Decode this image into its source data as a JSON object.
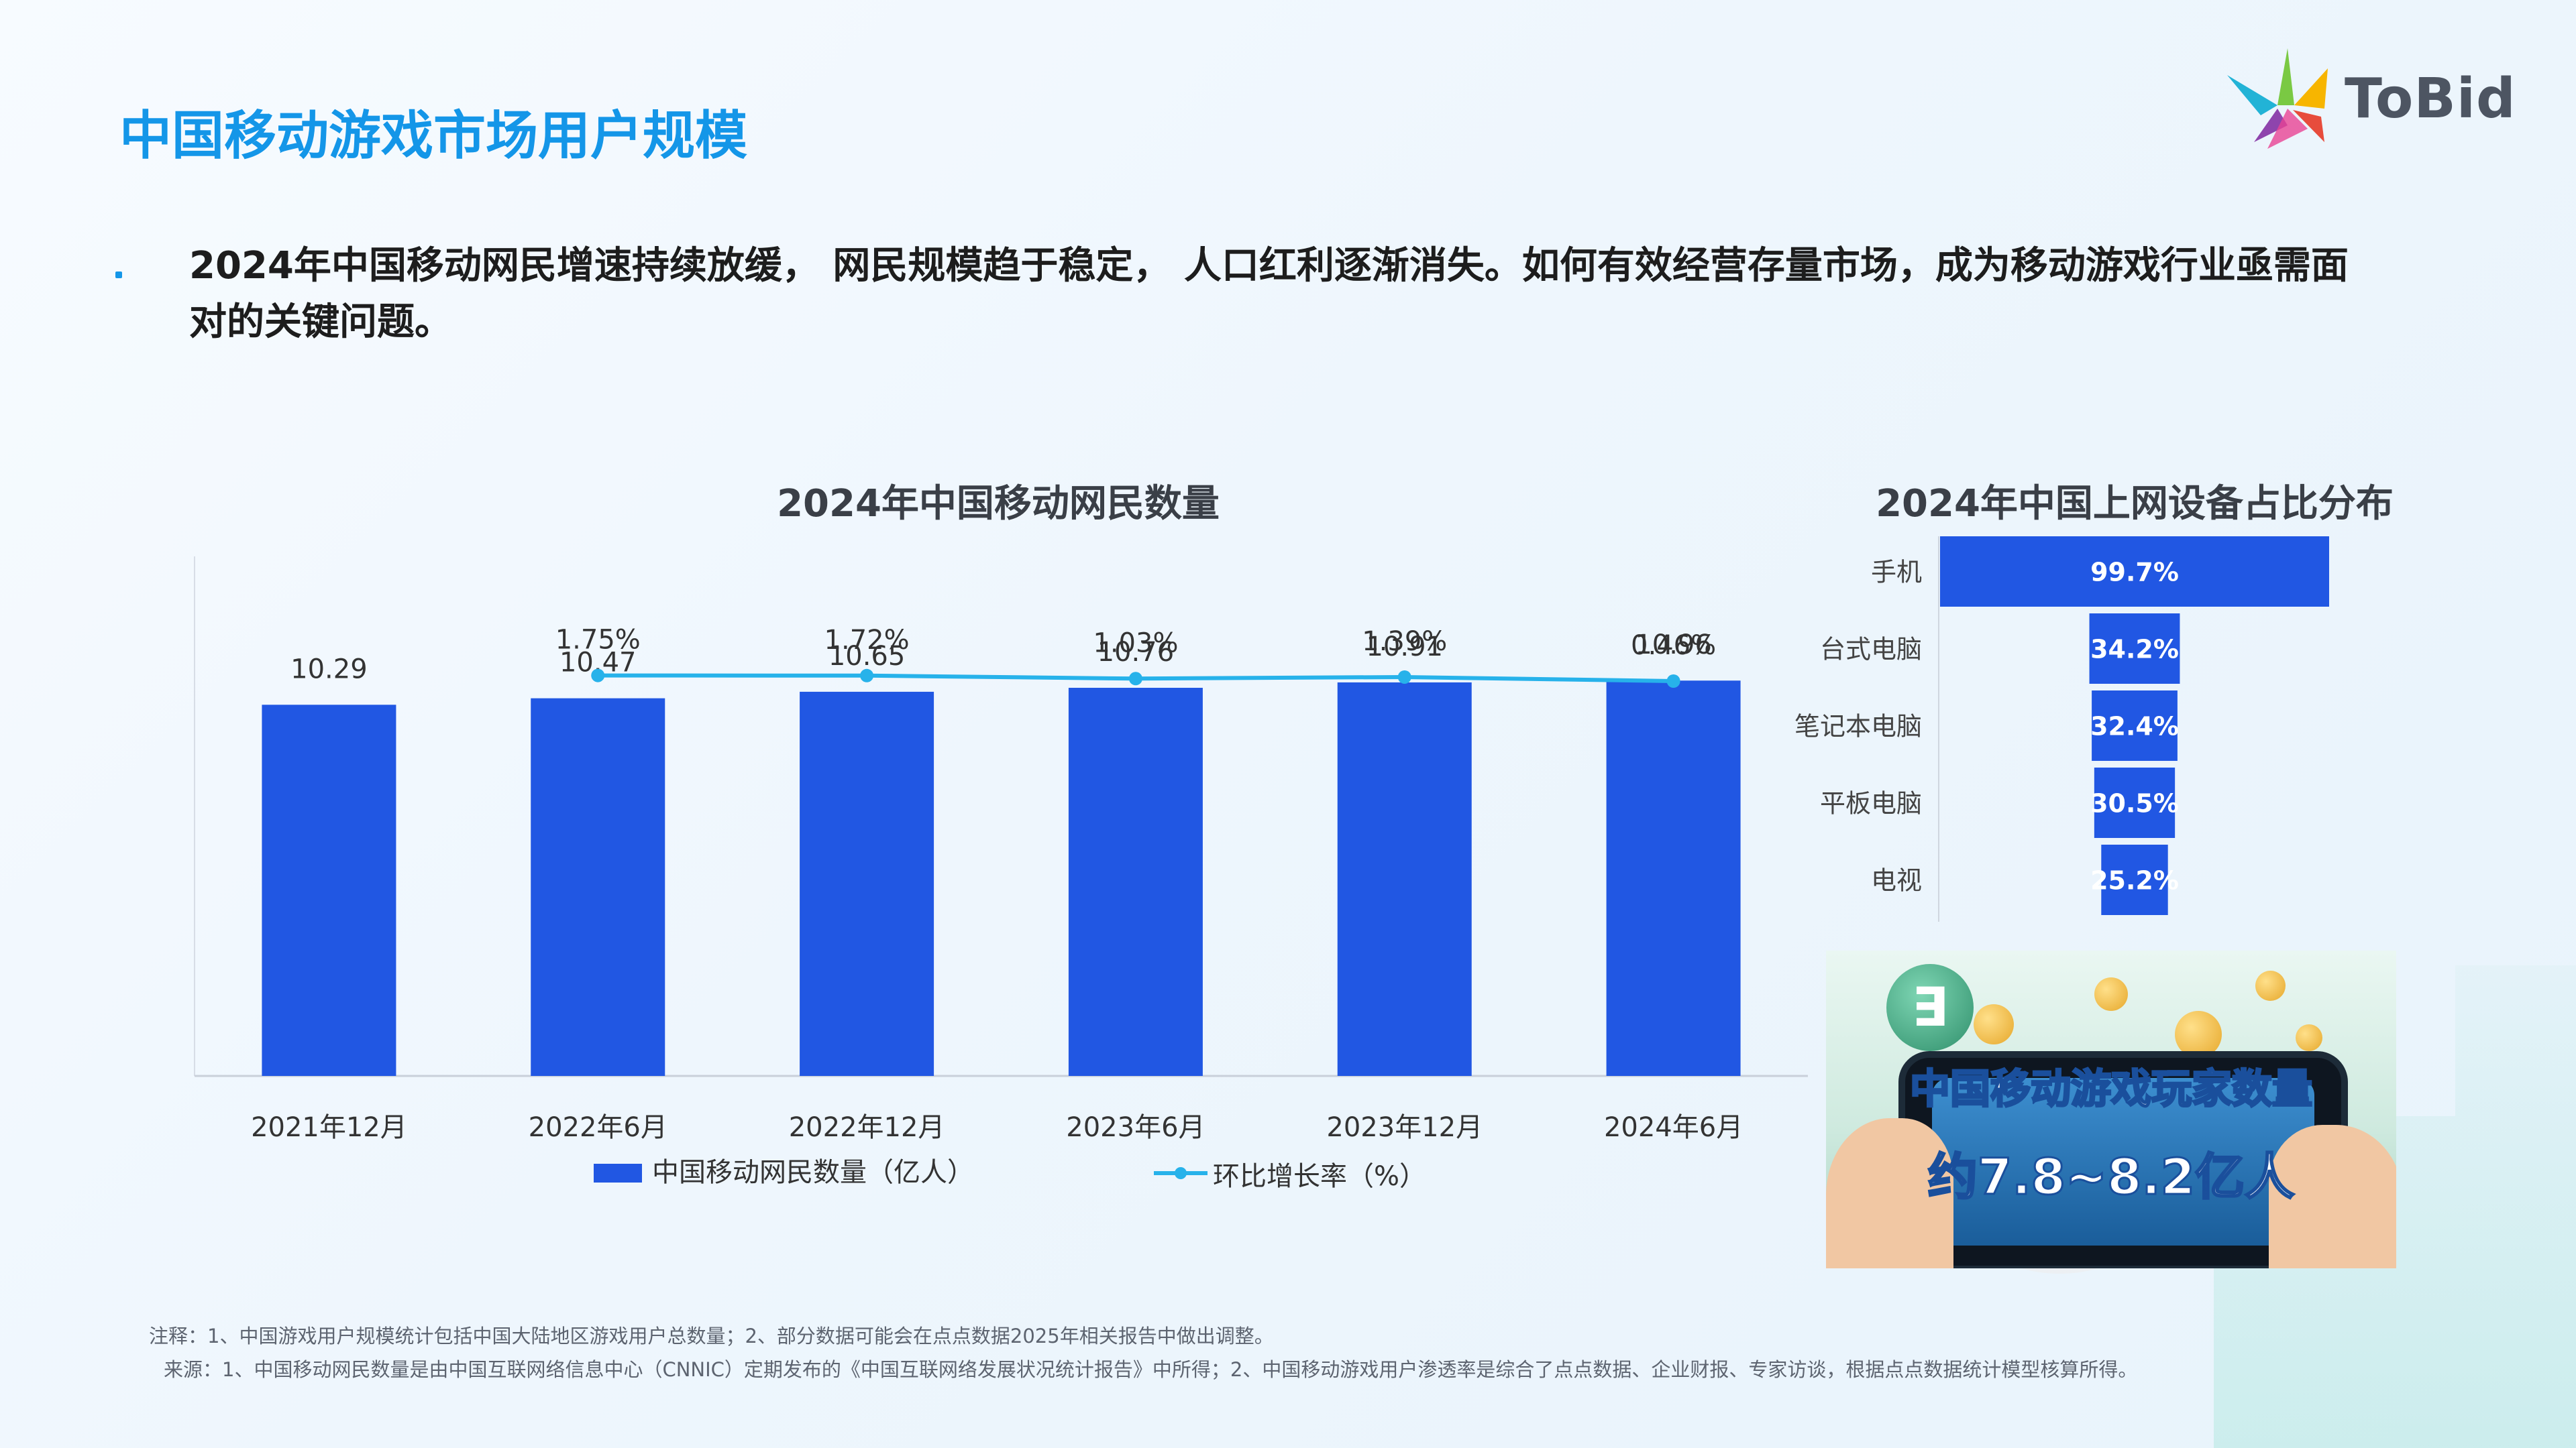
{
  "header": {
    "title": "中国移动游戏市场用户规模",
    "logo_text": "ToBid"
  },
  "intro": {
    "text": "2024年中国移动网民增速持续放缓， 网民规模趋于稳定， 人口红利逐渐消失。如何有效经营存量市场，成为移动游戏行业亟需面对的关键问题。"
  },
  "chart_data": [
    {
      "type": "bar",
      "title": "2024年中国移动网民数量",
      "categories": [
        "2021年12月",
        "2022年6月",
        "2022年12月",
        "2023年6月",
        "2023年12月",
        "2024年6月"
      ],
      "series": [
        {
          "name": "中国移动网民数量（亿人）",
          "type": "bar",
          "values": [
            10.29,
            10.47,
            10.65,
            10.76,
            10.91,
            10.96
          ],
          "color": "#2157e3"
        },
        {
          "name": "环比增长率（%）",
          "type": "line",
          "values": [
            null,
            1.75,
            1.72,
            1.03,
            1.39,
            0.46
          ],
          "labels": [
            "",
            "1.75%",
            "1.72%",
            "1.03%",
            "1.39%",
            "0.46%"
          ],
          "color": "#27b2ea"
        }
      ],
      "value_labels": [
        "10.29",
        "10.47",
        "10.65",
        "10.76",
        "10.91",
        "10.96"
      ],
      "ylim": [
        0,
        12
      ],
      "grid": false,
      "legend": "bottom"
    },
    {
      "type": "bar",
      "orientation": "horizontal-funnel",
      "title": "2024年中国上网设备占比分布",
      "categories": [
        "手机",
        "台式电脑",
        "笔记本电脑",
        "平板电脑",
        "电视"
      ],
      "values": [
        99.7,
        34.2,
        32.4,
        30.5,
        25.2
      ],
      "value_labels": [
        "99.7%",
        "34.2%",
        "32.4%",
        "30.5%",
        "25.2%"
      ],
      "color": "#2157e3"
    }
  ],
  "photo": {
    "caption_line1": "中国移动游戏玩家数量",
    "caption_line2": "约7.8~8.2亿人"
  },
  "notes": {
    "note": "注释：1、中国游戏用户规模统计包括中国大陆地区游戏用户总数量；2、部分数据可能会在点点数据2025年相关报告中做出调整。",
    "source": "来源：1、中国移动网民数量是由中国互联网络信息中心（CNNIC）定期发布的《中国互联网络发展状况统计报告》中所得；2、中国移动游戏用户渗透率是综合了点点数据、企业财报、专家访谈，根据点点数据统计模型核算所得。"
  }
}
